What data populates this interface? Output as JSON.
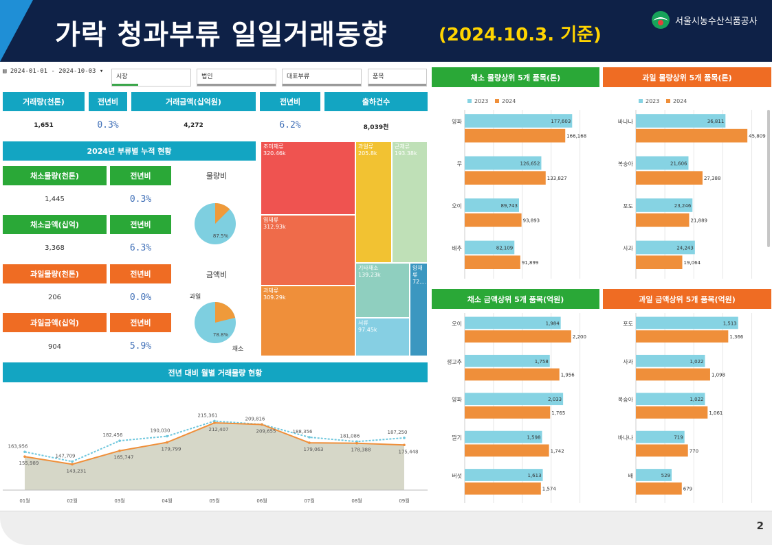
{
  "header": {
    "title": "가락 청과부류 일일거래동향",
    "subtitle": "(2024.10.3. 기준)",
    "org": "서울시농수산식품공사"
  },
  "filters": {
    "date_range": "2024-01-01 - 2024-10-03",
    "market": "시장",
    "corp": "법인",
    "category": "대표부류",
    "item": "품목"
  },
  "summary": {
    "volume_label": "거래량(천톤)",
    "volume": "1,651",
    "volume_yoy_label": "전년비",
    "volume_yoy": "0.3%",
    "amount_label": "거래금액(십억원)",
    "amount": "4,272",
    "amount_yoy_label": "전년비",
    "amount_yoy": "6.2%",
    "shipments_label": "출하건수",
    "shipments": "8,039천"
  },
  "cumulative": {
    "title": "2024년 부류별 누적 현황",
    "veg_volume_label": "채소물량(천톤)",
    "veg_volume": "1,445",
    "veg_volume_yoy_label": "전년비",
    "veg_volume_yoy": "0.3%",
    "veg_amount_label": "채소금액(십억)",
    "veg_amount": "3,368",
    "veg_amount_yoy_label": "전년비",
    "veg_amount_yoy": "6.3%",
    "fruit_volume_label": "과일물량(천톤)",
    "fruit_volume": "206",
    "fruit_volume_yoy_label": "전년비",
    "fruit_volume_yoy": "0.0%",
    "fruit_amount_label": "과일금액(십억)",
    "fruit_amount": "904",
    "fruit_amount_yoy_label": "전년비",
    "fruit_amount_yoy": "5.9%",
    "pie1_title": "물량비",
    "pie1_pct": "87.5%",
    "pie1_value": 0.875,
    "pie2_title": "금액비",
    "pie2_pct": "78.8%",
    "pie2_value": 0.788,
    "pie2_label_fruit": "과일",
    "pie2_label_veg": "채소",
    "pie_colors": {
      "veg": "#7ecfe0",
      "fruit": "#ef9a3a"
    }
  },
  "treemap": [
    {
      "label": "조미채류",
      "value": "320.46k",
      "color": "#ef5350"
    },
    {
      "label": "과일류",
      "value": "205.8k",
      "color": "#f2c232"
    },
    {
      "label": "근채류",
      "value": "193.38k",
      "color": "#bfe0b7"
    },
    {
      "label": "엽채류",
      "value": "312.93k",
      "color": "#ef6b4a"
    },
    {
      "label": "과채류",
      "value": "309.29k",
      "color": "#ef8f3a"
    },
    {
      "label": "기타채소",
      "value": "139.23k",
      "color": "#8fcfbf"
    },
    {
      "label": "양채류",
      "value": "72....",
      "color": "#3b97c0"
    },
    {
      "label": "서류",
      "value": "97.45k",
      "color": "#86cfe3"
    }
  ],
  "monthly": {
    "title": "전년 대비 월별 거래물량 현황",
    "months": [
      "01월",
      "02월",
      "03월",
      "04월",
      "05월",
      "06월",
      "07월",
      "08월",
      "09월"
    ],
    "series": [
      {
        "name": "2023",
        "color": "#6fc7dd",
        "values": [
          163956,
          147709,
          182456,
          190030,
          215361,
          209816,
          188356,
          181086,
          187250
        ]
      },
      {
        "name": "2024",
        "color": "#ef8f3a",
        "values": [
          155989,
          143231,
          165747,
          179799,
          212407,
          209655,
          179063,
          178388,
          175448
        ]
      }
    ],
    "labels_2023": [
      "163,956",
      "147,709",
      "182,456",
      "190,030",
      "215,361",
      "209,816",
      "188,356",
      "181,086",
      "187,250"
    ],
    "labels_2024": [
      "155,989",
      "143,231",
      "165,747",
      "179,799",
      "212,407",
      "209,655",
      "179,063",
      "178,388",
      "175,448"
    ]
  },
  "chart_data": [
    {
      "type": "bar",
      "title": "채소 물량상위 5개 품목(톤)",
      "categories": [
        "양파",
        "무",
        "오이",
        "배추"
      ],
      "series": [
        {
          "name": "2023",
          "values": [
            177603,
            126652,
            89743,
            82109
          ]
        },
        {
          "name": "2024",
          "values": [
            166168,
            133827,
            93893,
            91899
          ]
        }
      ],
      "labels_2023": [
        "177,603",
        "126,652",
        "89,743",
        "82,109"
      ],
      "labels_2024": [
        "166,168",
        "133,827",
        "93,893",
        "91,899"
      ],
      "xlim": [
        0,
        200000
      ]
    },
    {
      "type": "bar",
      "title": "과일 물량상위 5개 품목(톤)",
      "categories": [
        "바나나",
        "복숭아",
        "포도",
        "사과"
      ],
      "series": [
        {
          "name": "2023",
          "values": [
            36811,
            21606,
            23246,
            24243
          ]
        },
        {
          "name": "2024",
          "values": [
            45809,
            27388,
            21889,
            19064
          ]
        }
      ],
      "labels_2023": [
        "36,811",
        "21,606",
        "23,246",
        "24,243"
      ],
      "labels_2024": [
        "45,809",
        "27,388",
        "21,889",
        "19,064"
      ],
      "xlim": [
        0,
        50000
      ]
    },
    {
      "type": "bar",
      "title": "채소 금액상위 5개 품목(억원)",
      "categories": [
        "오이",
        "생고추",
        "양파",
        "딸기",
        "버섯"
      ],
      "series": [
        {
          "name": "2023",
          "values": [
            1984,
            1758,
            2033,
            1598,
            1613
          ]
        },
        {
          "name": "2024",
          "values": [
            2200,
            1956,
            1765,
            1742,
            1574
          ]
        }
      ],
      "labels_2023": [
        "1,984",
        "1,758",
        "2,033",
        "1,598",
        "1,613"
      ],
      "labels_2024": [
        "2,200",
        "1,956",
        "1,765",
        "1,742",
        "1,574"
      ],
      "xlim": [
        0,
        2500
      ]
    },
    {
      "type": "bar",
      "title": "과일 금액상위 5개 품목(억원)",
      "categories": [
        "포도",
        "사과",
        "복숭아",
        "바나나",
        "배"
      ],
      "series": [
        {
          "name": "2023",
          "values": [
            1513,
            1022,
            1022,
            719,
            529
          ]
        },
        {
          "name": "2024",
          "values": [
            1366,
            1098,
            1061,
            770,
            679
          ]
        }
      ],
      "labels_2023": [
        "1,513",
        "1,022",
        "1,022",
        "719",
        "529"
      ],
      "labels_2024": [
        "1,366",
        "1,098",
        "1,061",
        "770",
        "679"
      ],
      "xlim": [
        0,
        1800
      ]
    },
    {
      "type": "line",
      "title": "전년 대비 월별 거래물량 현황",
      "categories": [
        "01월",
        "02월",
        "03월",
        "04월",
        "05월",
        "06월",
        "07월",
        "08월",
        "09월"
      ],
      "series": [
        {
          "name": "2023",
          "values": [
            163956,
            147709,
            182456,
            190030,
            215361,
            209816,
            188356,
            181086,
            187250
          ]
        },
        {
          "name": "2024",
          "values": [
            155989,
            143231,
            165747,
            179799,
            212407,
            209655,
            179063,
            178388,
            175448
          ]
        }
      ]
    }
  ],
  "legend": {
    "y2023": "2023",
    "y2024": "2024",
    "c2023": "#86d3e3",
    "c2024": "#ef8f3a"
  },
  "page_number": "2"
}
